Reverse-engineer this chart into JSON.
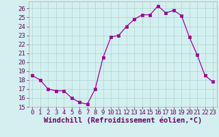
{
  "x": [
    0,
    1,
    2,
    3,
    4,
    5,
    6,
    7,
    8,
    9,
    10,
    11,
    12,
    13,
    14,
    15,
    16,
    17,
    18,
    19,
    20,
    21,
    22,
    23
  ],
  "y": [
    18.5,
    18.0,
    17.0,
    16.8,
    16.8,
    16.0,
    15.5,
    15.3,
    17.0,
    20.5,
    22.8,
    23.0,
    24.0,
    24.8,
    25.3,
    25.3,
    26.3,
    25.5,
    25.8,
    25.2,
    22.8,
    20.8,
    18.5,
    17.8
  ],
  "xlim": [
    -0.5,
    23.5
  ],
  "ylim": [
    15,
    26.8
  ],
  "yticks": [
    15,
    16,
    17,
    18,
    19,
    20,
    21,
    22,
    23,
    24,
    25,
    26
  ],
  "xticks": [
    0,
    1,
    2,
    3,
    4,
    5,
    6,
    7,
    8,
    9,
    10,
    11,
    12,
    13,
    14,
    15,
    16,
    17,
    18,
    19,
    20,
    21,
    22,
    23
  ],
  "xlabel": "Windchill (Refroidissement éolien,°C)",
  "line_color": "#990099",
  "marker": "s",
  "marker_size": 2.5,
  "bg_color": "#d4efef",
  "grid_color": "#aed4d4",
  "tick_label_fontsize": 6.5,
  "xlabel_fontsize": 7.5
}
